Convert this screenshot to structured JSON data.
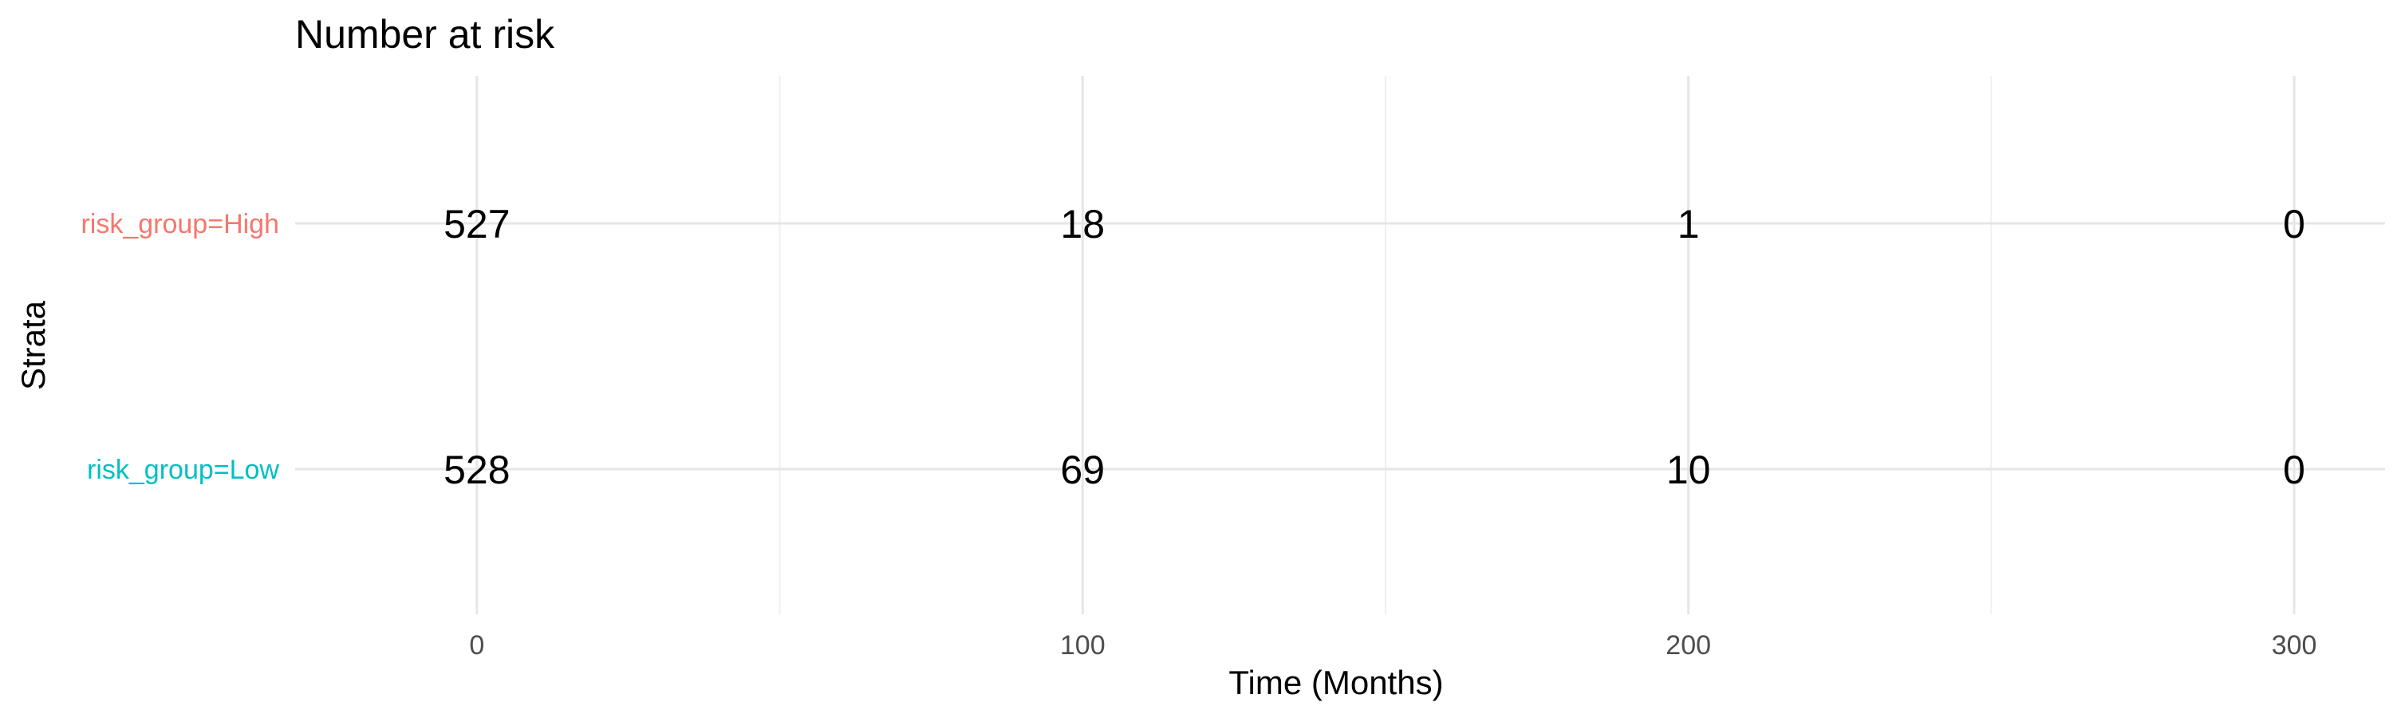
{
  "chart_data": {
    "type": "table",
    "title": "Number at risk",
    "xlabel": "Time (Months)",
    "ylabel": "Strata",
    "xlim": [
      -30,
      315
    ],
    "x_major_ticks": [
      0,
      100,
      200,
      300
    ],
    "x_minor_ticks": [
      50,
      150,
      250
    ],
    "time_points": [
      0,
      100,
      200,
      300
    ],
    "grid": true,
    "series": [
      {
        "name": "risk_group=High",
        "color": "#F8766D",
        "values": [
          527,
          18,
          1,
          0
        ]
      },
      {
        "name": "risk_group=Low",
        "color": "#00BFC4",
        "values": [
          528,
          69,
          10,
          0
        ]
      }
    ]
  }
}
